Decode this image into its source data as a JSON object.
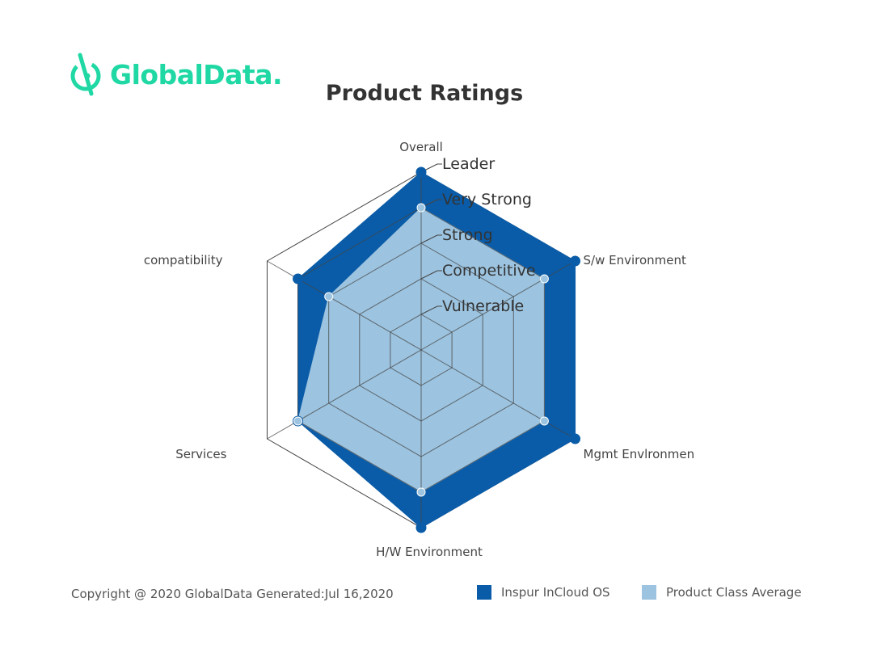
{
  "logo": {
    "text": "GlobalData.",
    "color": "#1fd8a4"
  },
  "footer": {
    "copyright": "Copyright @ 2020 GlobalData Generated:Jul 16,2020"
  },
  "colors": {
    "series_primary": "#0a5ca8",
    "series_secondary": "#9cc3df",
    "grid": "#444444",
    "text": "#444444"
  },
  "chart_data": {
    "type": "radar",
    "title": "Product Ratings",
    "axes": [
      "Overall",
      "S/w Environment",
      "Mgmt Envlronmen",
      "H/W Environment",
      "Services",
      "compatibility"
    ],
    "levels": [
      "Vulnerable",
      "Competitive",
      "Strong",
      "Very Strong",
      "Leader"
    ],
    "max": 5,
    "series": [
      {
        "name": "Inspur InCloud OS",
        "values": [
          5,
          5,
          5,
          5,
          4,
          4
        ],
        "color": "#0a5ca8"
      },
      {
        "name": "Product Class Average",
        "values": [
          4,
          4,
          4,
          4,
          4,
          3
        ],
        "color": "#9cc3df"
      }
    ],
    "legend_position": "bottom-right"
  }
}
